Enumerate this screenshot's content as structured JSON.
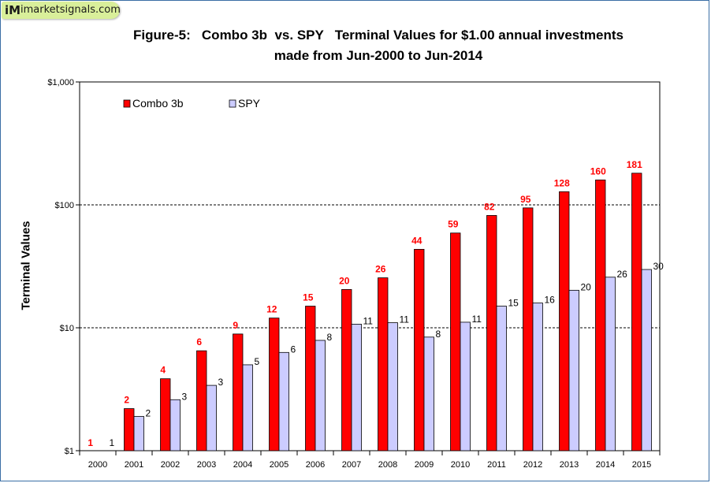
{
  "logo": {
    "mark": "iM",
    "text": "imarketsignals.com"
  },
  "chart_data": {
    "type": "bar",
    "title": "Figure-5:   Combo 3b  vs. SPY   Terminal Values for $1.00 annual investments",
    "subtitle": "made from Jun-2000 to Jun-2014",
    "xlabel": "",
    "ylabel": "Terminal Values",
    "yscale": "log",
    "ylim": [
      1,
      1000
    ],
    "yticks": [
      {
        "value": 1,
        "label": "$1"
      },
      {
        "value": 10,
        "label": "$10"
      },
      {
        "value": 100,
        "label": "$100"
      },
      {
        "value": 1000,
        "label": "$1,000"
      }
    ],
    "gridlines": "dashed at $10 and $100",
    "legend_position": "top-left",
    "categories": [
      "2000",
      "2001",
      "2002",
      "2003",
      "2004",
      "2005",
      "2006",
      "2007",
      "2008",
      "2009",
      "2010",
      "2011",
      "2012",
      "2013",
      "2014",
      "2015"
    ],
    "series": [
      {
        "name": "Combo 3b",
        "color": "#ff0000",
        "label_color": "#ff0000",
        "values": [
          1,
          2.2,
          3.85,
          6.5,
          8.9,
          12,
          15,
          20.5,
          25.5,
          43.5,
          59,
          82,
          94.5,
          128,
          159.5,
          181
        ],
        "labels": [
          "1",
          "2",
          "4",
          "6",
          "9",
          "12",
          "15",
          "20",
          "26",
          "44",
          "59",
          "82",
          "95",
          "128",
          "160",
          "181"
        ]
      },
      {
        "name": "SPY",
        "color": "#ccccff",
        "label_color": "#000000",
        "values": [
          1,
          1.9,
          2.6,
          3.4,
          5,
          6.3,
          7.9,
          10.7,
          11,
          8.4,
          11.1,
          15,
          15.9,
          20.2,
          25.8,
          29.8
        ],
        "labels": [
          "1",
          "2",
          "3",
          "3",
          "5",
          "6",
          "8",
          "11",
          "11",
          "8",
          "11",
          "15",
          "16",
          "20",
          "26",
          "30"
        ]
      }
    ]
  }
}
